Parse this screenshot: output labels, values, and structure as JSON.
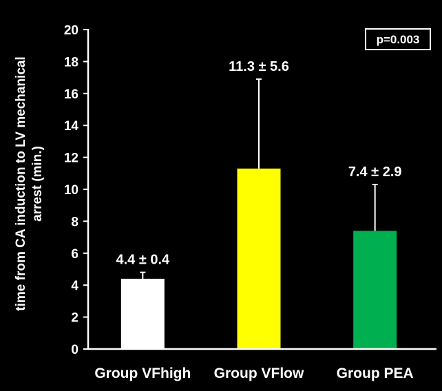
{
  "chart_data": {
    "type": "bar",
    "categories": [
      "Group VFhigh",
      "Group VFlow",
      "Group PEA"
    ],
    "values": [
      4.4,
      11.3,
      7.4
    ],
    "errors": [
      0.4,
      5.6,
      2.9
    ],
    "value_labels": [
      "4.4 ± 0.4",
      "11.3 ± 5.6",
      "7.4 ± 2.9"
    ],
    "colors": [
      "#ffffff",
      "#ffff00",
      "#00b050"
    ],
    "ylabel_lines": [
      "time from CA induction to LV mechanical",
      "arrest (min.)"
    ],
    "xlabel": "",
    "ylim": [
      0,
      20
    ],
    "yticks": [
      0,
      2,
      4,
      6,
      8,
      10,
      12,
      14,
      16,
      18,
      20
    ],
    "annotation": "p=0.003",
    "grid": false,
    "background": "#000000"
  }
}
